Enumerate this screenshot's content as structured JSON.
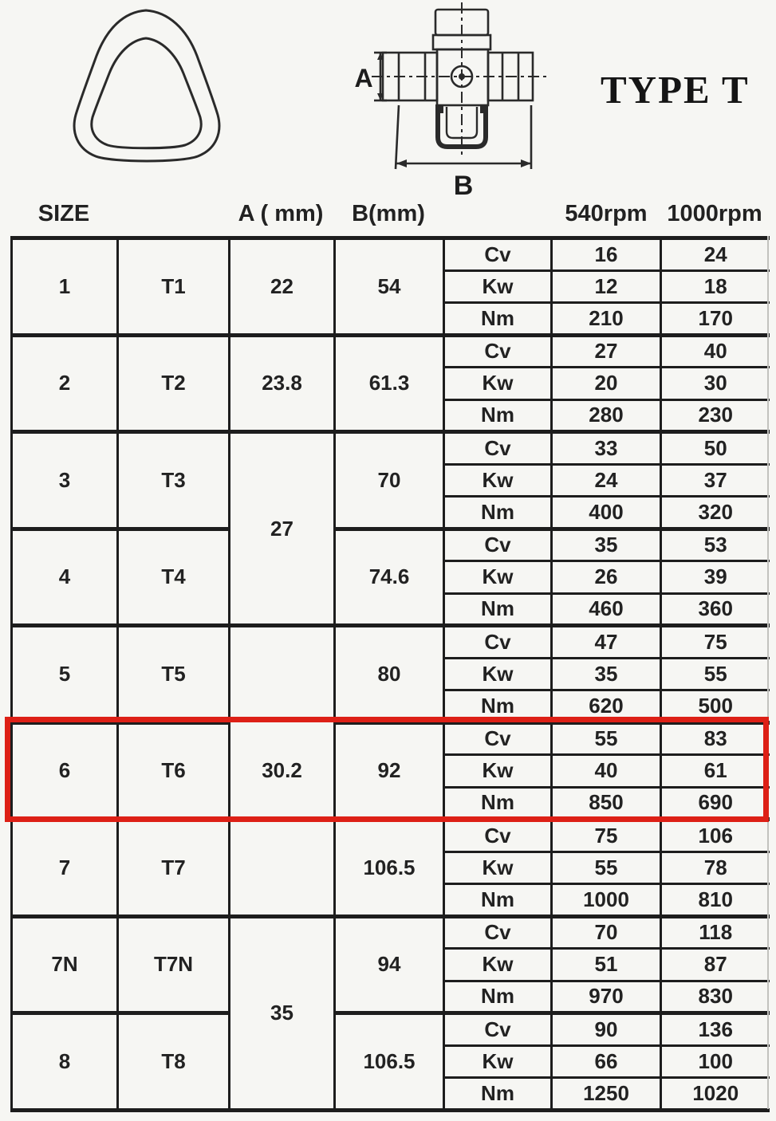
{
  "title": {
    "label": "TYPE T"
  },
  "diagram": {
    "tube_profile_name": "triangular-tube-cross-section",
    "joint_name": "universal-joint-cross",
    "a_label": "A",
    "b_label": "B"
  },
  "colors": {
    "highlight_red": "#dd2016",
    "ink": "#1d1d1d",
    "paper": "#f6f6f3"
  },
  "table": {
    "headers": {
      "size": "SIZE",
      "a": "A ( mm)",
      "b": "B(mm)",
      "rpm540": "540rpm",
      "rpm1000": "1000rpm"
    },
    "row_labels": [
      "Cv",
      "Kw",
      "Nm"
    ],
    "groups": [
      {
        "size": "1",
        "name": "T1",
        "a": "22",
        "a_groups": 1,
        "b": "54",
        "values": [
          [
            "16",
            "24"
          ],
          [
            "12",
            "18"
          ],
          [
            "210",
            "170"
          ]
        ],
        "highlight": false
      },
      {
        "size": "2",
        "name": "T2",
        "a": "23.8",
        "a_groups": 1,
        "b": "61.3",
        "values": [
          [
            "27",
            "40"
          ],
          [
            "20",
            "30"
          ],
          [
            "280",
            "230"
          ]
        ],
        "highlight": false
      },
      {
        "size": "3",
        "name": "T3",
        "a": "27",
        "a_groups": 2,
        "b": "70",
        "values": [
          [
            "33",
            "50"
          ],
          [
            "24",
            "37"
          ],
          [
            "400",
            "320"
          ]
        ],
        "highlight": false
      },
      {
        "size": "4",
        "name": "T4",
        "a": null,
        "b": "74.6",
        "values": [
          [
            "35",
            "53"
          ],
          [
            "26",
            "39"
          ],
          [
            "460",
            "360"
          ]
        ],
        "highlight": false
      },
      {
        "size": "5",
        "name": "T5",
        "a": "30.2",
        "a_groups": 3,
        "b": "80",
        "values": [
          [
            "47",
            "75"
          ],
          [
            "35",
            "55"
          ],
          [
            "620",
            "500"
          ]
        ],
        "highlight": false
      },
      {
        "size": "6",
        "name": "T6",
        "a": null,
        "b": "92",
        "values": [
          [
            "55",
            "83"
          ],
          [
            "40",
            "61"
          ],
          [
            "850",
            "690"
          ]
        ],
        "highlight": true
      },
      {
        "size": "7",
        "name": "T7",
        "a": null,
        "b": "106.5",
        "values": [
          [
            "75",
            "106"
          ],
          [
            "55",
            "78"
          ],
          [
            "1000",
            "810"
          ]
        ],
        "highlight": false
      },
      {
        "size": "7N",
        "name": "T7N",
        "a": "35",
        "a_groups": 2,
        "b": "94",
        "values": [
          [
            "70",
            "118"
          ],
          [
            "51",
            "87"
          ],
          [
            "970",
            "830"
          ]
        ],
        "highlight": false
      },
      {
        "size": "8",
        "name": "T8",
        "a": null,
        "b": "106.5",
        "values": [
          [
            "90",
            "136"
          ],
          [
            "66",
            "100"
          ],
          [
            "1250",
            "1020"
          ]
        ],
        "highlight": false
      }
    ]
  }
}
